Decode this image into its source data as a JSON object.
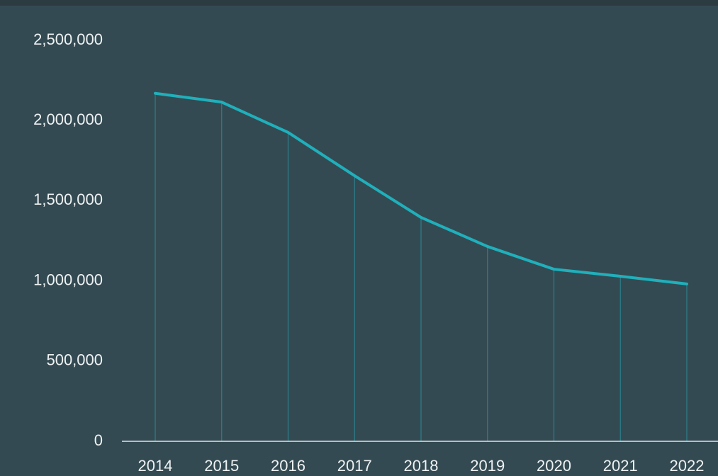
{
  "chart_data": {
    "type": "line",
    "categories": [
      "2014",
      "2015",
      "2016",
      "2017",
      "2018",
      "2019",
      "2020",
      "2021",
      "2022"
    ],
    "series": [
      {
        "color": "#1fb0bb",
        "values": [
          2170000,
          2115000,
          1926000,
          1656000,
          1396000,
          1215000,
          1073000,
          1029000,
          981000
        ]
      }
    ],
    "ylim": [
      0,
      2500000
    ],
    "yticks": [
      0,
      {
        "value": 500000,
        "label": "500,000"
      },
      {
        "value": 1000000,
        "label": "1,000,000"
      },
      {
        "value": 1500000,
        "label": "1,500,000"
      },
      {
        "value": 2000000,
        "label": "2,000,000"
      },
      {
        "value": 2500000,
        "label": "2,500,000"
      }
    ],
    "drop_lines": true
  }
}
